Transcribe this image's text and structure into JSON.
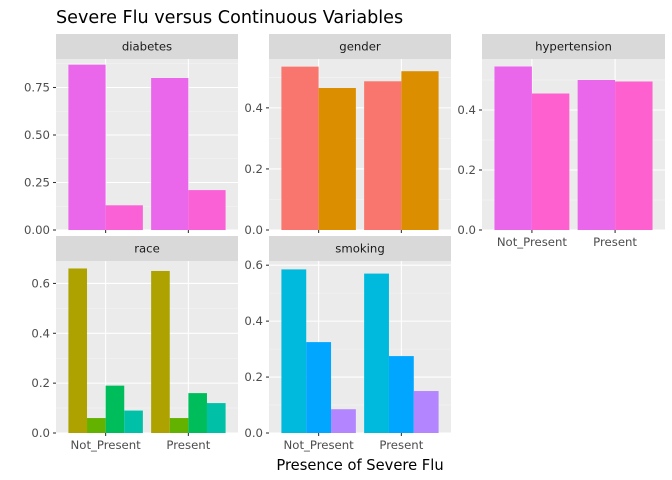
{
  "chart_data": {
    "type": "bar",
    "title": "Severe Flu versus Continuous Variables",
    "xlabel": "Presence of Severe Flu",
    "ylabel": "",
    "categories": [
      "Not_Present",
      "Present"
    ],
    "legend": "none",
    "grid": true,
    "panels": [
      {
        "name": "diabetes",
        "ylim": [
          0,
          0.9
        ],
        "yticks": [
          "0.00",
          "0.25",
          "0.50",
          "0.75"
        ],
        "show_x_labels": false,
        "colors": [
          "#ea66eb",
          "#fb61d7"
        ],
        "series": [
          {
            "values": [
              0.87,
              0.8
            ]
          },
          {
            "values": [
              0.13,
              0.21
            ]
          }
        ]
      },
      {
        "name": "gender",
        "ylim": [
          0,
          0.56
        ],
        "yticks": [
          "0.0",
          "0.2",
          "0.4"
        ],
        "show_x_labels": false,
        "colors": [
          "#f8766d",
          "#db8e00"
        ],
        "series": [
          {
            "values": [
              0.535,
              0.487
            ]
          },
          {
            "values": [
              0.465,
              0.52
            ]
          }
        ]
      },
      {
        "name": "hypertension",
        "ylim": [
          0,
          0.57
        ],
        "yticks": [
          "0.0",
          "0.2",
          "0.4"
        ],
        "show_x_labels": true,
        "colors": [
          "#ea66eb",
          "#fe61cf"
        ],
        "series": [
          {
            "values": [
              0.545,
              0.5
            ]
          },
          {
            "values": [
              0.455,
              0.495
            ]
          }
        ]
      },
      {
        "name": "race",
        "ylim": [
          0,
          0.69
        ],
        "yticks": [
          "0.0",
          "0.2",
          "0.4",
          "0.6"
        ],
        "show_x_labels": true,
        "colors": [
          "#aea200",
          "#64b200",
          "#00bd5c",
          "#00c1a7"
        ],
        "series": [
          {
            "values": [
              0.66,
              0.65
            ]
          },
          {
            "values": [
              0.06,
              0.06
            ]
          },
          {
            "values": [
              0.19,
              0.16
            ]
          },
          {
            "values": [
              0.09,
              0.12
            ]
          }
        ]
      },
      {
        "name": "smoking",
        "ylim": [
          0,
          0.615
        ],
        "yticks": [
          "0.0",
          "0.2",
          "0.4",
          "0.6"
        ],
        "show_x_labels": true,
        "colors": [
          "#00bade",
          "#00a6ff",
          "#b385ff"
        ],
        "series": [
          {
            "values": [
              0.585,
              0.57
            ]
          },
          {
            "values": [
              0.325,
              0.275
            ]
          },
          {
            "values": [
              0.085,
              0.15
            ]
          }
        ]
      }
    ]
  }
}
